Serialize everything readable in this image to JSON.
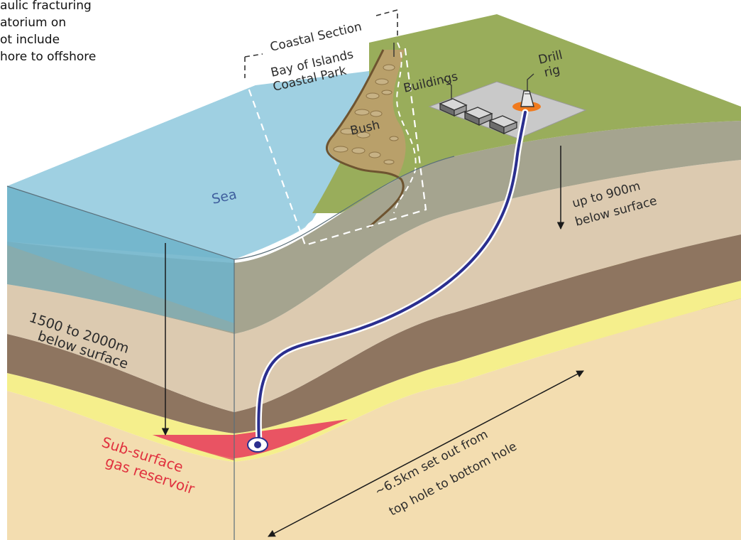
{
  "intro_text": {
    "line1": "aulic fracturing",
    "line2": "atorium on",
    "line3": "ot include",
    "line4": "hore to offshore"
  },
  "labels": {
    "coastal_section": "Coastal Section",
    "bay_of_islands_1": "Bay of Islands",
    "bay_of_islands_2": "Coastal Park",
    "buildings": "Buildings",
    "drill_1": "Drill",
    "drill_2": "rig",
    "bush": "Bush",
    "sea": "Sea",
    "depth_land_1": "up to 900m",
    "depth_land_2": "below surface",
    "depth_sea_1": "1500 to 2000m",
    "depth_sea_2": "below surface",
    "reservoir_1": "Sub-surface",
    "reservoir_2": "gas reservoir",
    "setout_1": "~6.5km set out from",
    "setout_2": "top hole to bottom hole"
  },
  "colors": {
    "sea_top": "#a9d6e6",
    "sea_front": "#6fb3c9",
    "land_green": "#99ad5b",
    "bush_brown": "#8a6a3c",
    "layer_gray": "#a5a48f",
    "layer_tan": "#dccab0",
    "layer_brown": "#8e7560",
    "layer_yellow": "#f5ef8c",
    "layer_cream": "#f3ddb0",
    "reservoir_red": "#e95463",
    "well_blue": "#2b2f8f",
    "reservoir_label": "#e0303e",
    "sea_label": "#3f5f9e"
  }
}
